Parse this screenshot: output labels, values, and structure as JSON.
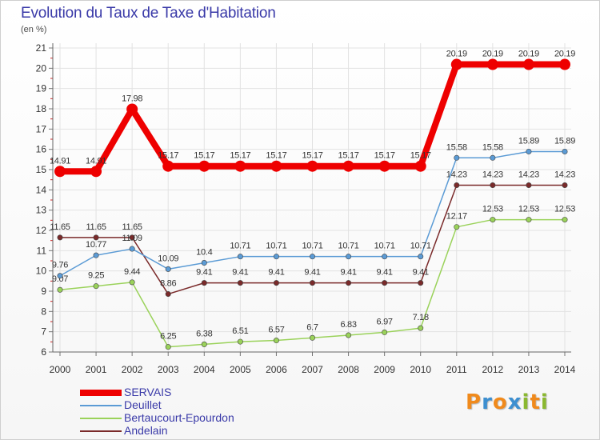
{
  "title": "Evolution du Taux de Taxe d'Habitation",
  "subtitle": "(en %)",
  "logo": {
    "text": "Proxiti",
    "letter_colors": [
      "#f08a1c",
      "#3d8fd0",
      "#f08a1c",
      "#3d8fd0",
      "#8ab830",
      "#f08a1c",
      "#8ab830"
    ]
  },
  "chart_data": {
    "type": "line",
    "title": "Evolution du Taux de Taxe d'Habitation",
    "ylabel": "(en %)",
    "xlabel": "",
    "x": [
      "2000",
      "2001",
      "2002",
      "2003",
      "2004",
      "2005",
      "2006",
      "2007",
      "2008",
      "2009",
      "2010",
      "2011",
      "2012",
      "2013",
      "2014"
    ],
    "ylim": [
      6,
      21
    ],
    "yticks": [
      "6",
      "7",
      "8",
      "9",
      "10",
      "11",
      "12",
      "13",
      "14",
      "15",
      "16",
      "17",
      "18",
      "19",
      "20",
      "21"
    ],
    "grid": true,
    "legend_position": "bottom-left",
    "series": [
      {
        "name": "Andelain",
        "color": "#7a2a2a",
        "values": [
          11.65,
          11.65,
          11.65,
          8.86,
          9.41,
          9.41,
          9.41,
          9.41,
          9.41,
          9.41,
          9.41,
          14.23,
          14.23,
          14.23,
          14.23
        ],
        "labels": [
          "11.65",
          "11.65",
          "11.65",
          "8.86",
          "9.41",
          "9.41",
          "9.41",
          "9.41",
          "9.41",
          "9.41",
          "9.41",
          "14.23",
          "14.23",
          "14.23",
          "14.23"
        ]
      },
      {
        "name": "Bertaucourt-Epourdon",
        "color": "#9ad25a",
        "values": [
          9.07,
          9.25,
          9.44,
          6.25,
          6.38,
          6.51,
          6.57,
          6.7,
          6.83,
          6.97,
          7.18,
          12.17,
          12.53,
          12.53,
          12.53
        ],
        "labels": [
          "9.07",
          "9.25",
          "9.44",
          "6.25",
          "6.38",
          "6.51",
          "6.57",
          "6.7",
          "6.83",
          "6.97",
          "7.18",
          "12.17",
          "12.53",
          "12.53",
          "12.53"
        ]
      },
      {
        "name": "Deuillet",
        "color": "#5b9bd5",
        "values": [
          9.76,
          10.77,
          11.09,
          10.09,
          10.4,
          10.71,
          10.71,
          10.71,
          10.71,
          10.71,
          10.71,
          15.58,
          15.58,
          15.89,
          15.89
        ],
        "labels": [
          "9.76",
          "10.77",
          "11.09",
          "10.09",
          "10.4",
          "10.71",
          "10.71",
          "10.71",
          "10.71",
          "10.71",
          "10.71",
          "15.58",
          "15.58",
          "15.89",
          "15.89"
        ]
      },
      {
        "name": "SERVAIS",
        "color": "#ee0000",
        "values": [
          14.91,
          14.91,
          17.98,
          15.17,
          15.17,
          15.17,
          15.17,
          15.17,
          15.17,
          15.17,
          15.17,
          20.19,
          20.19,
          20.19,
          20.19
        ],
        "labels": [
          "14.91",
          "14.91",
          "17.98",
          "15.17",
          "15.17",
          "15.17",
          "15.17",
          "15.17",
          "15.17",
          "15.17",
          "15.17",
          "20.19",
          "20.19",
          "20.19",
          "20.19"
        ]
      }
    ],
    "legend": [
      "SERVAIS",
      "Deuillet",
      "Bertaucourt-Epourdon",
      "Andelain"
    ]
  }
}
